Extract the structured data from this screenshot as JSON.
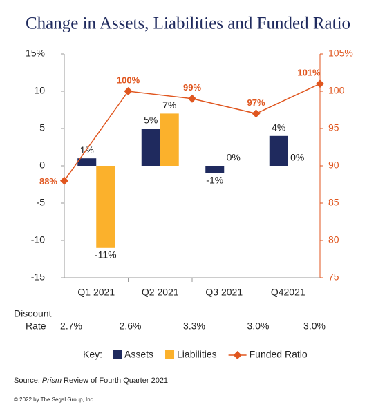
{
  "chart_data": {
    "type": "bar",
    "title": "Change in Assets, Liabilities and Funded Ratio",
    "categories": [
      "Q1 2021",
      "Q2 2021",
      "Q3 2021",
      "Q42021"
    ],
    "series": [
      {
        "name": "Assets",
        "color": "#1f2a5e",
        "values": [
          1,
          5,
          -1,
          4
        ],
        "value_labels": [
          "1%",
          "5%",
          "-1%",
          "4%"
        ]
      },
      {
        "name": "Liabilities",
        "color": "#fbb12c",
        "values": [
          -11,
          7,
          0,
          0
        ],
        "value_labels": [
          "-11%",
          "7%",
          "0%",
          "0%"
        ]
      }
    ],
    "overlay": {
      "type": "line",
      "name": "Funded Ratio",
      "color": "#e0561f",
      "axis": "y2",
      "values": [
        88,
        100,
        99,
        97,
        101
      ],
      "value_labels": [
        "88%",
        "100%",
        "99%",
        "97%",
        "101%"
      ]
    },
    "ylim": [
      -15,
      15
    ],
    "yticks": [
      {
        "value": 15,
        "label": "15%"
      },
      10,
      5,
      0,
      -5,
      -10,
      -15
    ],
    "y2lim": [
      75,
      105
    ],
    "y2ticks": [
      {
        "value": 105,
        "label": "105%"
      },
      100,
      95,
      90,
      85,
      80,
      75
    ],
    "discount_label": [
      "Discount",
      "Rate"
    ],
    "discount_rates": [
      "2.7%",
      "2.6%",
      "3.3%",
      "3.0%",
      "3.0%"
    ],
    "legend_key": "Key:",
    "source": {
      "prefix": "Source:",
      "italic": "Prism",
      "rest": "Review of Fourth Quarter 2021"
    },
    "copyright": "© 2022 by The Segal Group, Inc."
  }
}
